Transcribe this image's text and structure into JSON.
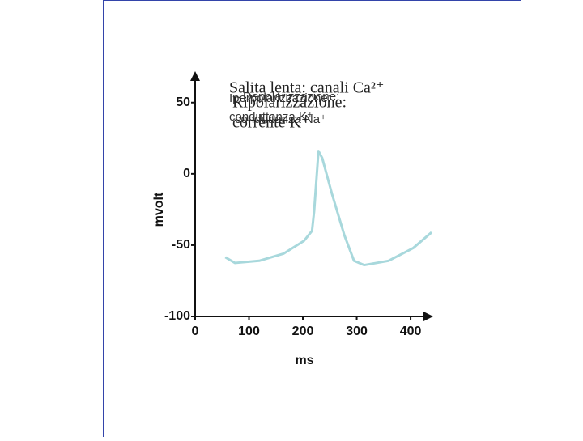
{
  "chart_data": {
    "type": "line",
    "x_label": "ms",
    "y_label": "mvolt",
    "x": [
      56,
      74,
      119,
      164,
      202,
      217,
      221,
      229,
      236,
      254,
      277,
      295,
      314,
      359,
      405,
      439
    ],
    "series": [
      {
        "color": "#a8d8dc",
        "values": [
          -58.5,
          -62.5,
          -61,
          -56,
          -47,
          -40,
          -26,
          16,
          11,
          -14,
          -43,
          -61,
          -64,
          -61,
          -52,
          -41
        ]
      }
    ],
    "xlim": [
      0,
      442
    ],
    "xticks": [
      0,
      100,
      200,
      300,
      400
    ],
    "ylim": [
      -100,
      72
    ],
    "yticks": [
      -100,
      -50,
      0,
      50
    ],
    "annotations": [
      "Salita lenta: canali Ca²⁺",
      "Iperpolarizzazione:",
      "conduttanza K⁺",
      "Depolarizzazione:",
      "conduttanza Na⁺",
      "Ripolarizzazione:",
      "corrente K⁺"
    ]
  }
}
